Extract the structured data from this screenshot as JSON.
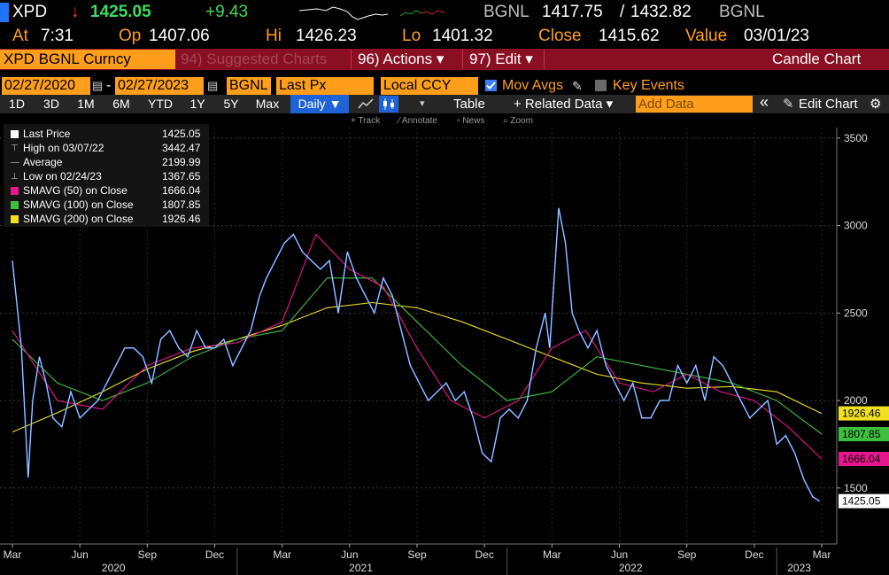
{
  "quote": {
    "ticker": "XPD",
    "arrow": "↓",
    "last": "1425.05",
    "change": "+9.43",
    "src1": "BGNL",
    "bid": "1417.75",
    "ask_sep": "/",
    "ask": "1432.82",
    "src2": "BGNL",
    "at_label": "At",
    "at_time": "7:31",
    "op_label": "Op",
    "op": "1407.06",
    "hi_label": "Hi",
    "hi": "1426.23",
    "lo_label": "Lo",
    "lo": "1401.32",
    "close_label": "Close",
    "close": "1415.62",
    "value_label": "Value",
    "value_date": "03/01/23"
  },
  "titlebar": {
    "security": "XPD BGNL Curncy",
    "menu1": "94) Suggested Charts",
    "menu2": "96) Actions ▾",
    "menu3": "97) Edit ▾",
    "chart_kind": "Candle Chart"
  },
  "controls": {
    "start_date": "02/27/2020",
    "dash": "-",
    "end_date": "02/27/2023",
    "source": "BGNL",
    "field": "Last Px",
    "currency": "Local CCY",
    "mov_avgs": "Mov Avgs",
    "key_events": "Key Events"
  },
  "tabs": [
    {
      "label": "1D",
      "selected": false
    },
    {
      "label": "3D",
      "selected": false
    },
    {
      "label": "1M",
      "selected": false
    },
    {
      "label": "6M",
      "selected": false
    },
    {
      "label": "YTD",
      "selected": false
    },
    {
      "label": "1Y",
      "selected": false
    },
    {
      "label": "5Y",
      "selected": false
    },
    {
      "label": "Max",
      "selected": false
    },
    {
      "label": "Daily ▼",
      "selected": true
    }
  ],
  "toolbar": {
    "table": "Table",
    "related": "+ Related Data ▾",
    "add_data_placeholder": "Add Data",
    "collapse": "«",
    "edit_chart": "Edit Chart",
    "gear": "⚙"
  },
  "subtools": {
    "track": "Track",
    "annotate": "Annotate",
    "news": "News",
    "zoom": "Zoom"
  },
  "legend": [
    {
      "label": "Last Price",
      "value": "1425.05",
      "color": "#ffffff",
      "kind": "box"
    },
    {
      "label": "High on 03/07/22",
      "value": "3442.47",
      "color": "#bdbdbd",
      "kind": "high"
    },
    {
      "label": "Average",
      "value": "2199.99",
      "color": "#bdbdbd",
      "kind": "avg"
    },
    {
      "label": "Low on 02/24/23",
      "value": "1367.65",
      "color": "#bdbdbd",
      "kind": "low"
    },
    {
      "label": "SMAVG (50)  on Close",
      "value": "1666.04",
      "color": "#e8168c",
      "kind": "box"
    },
    {
      "label": "SMAVG (100)  on Close",
      "value": "1807.85",
      "color": "#3fbf3f",
      "kind": "box"
    },
    {
      "label": "SMAVG (200)  on Close",
      "value": "1926.46",
      "color": "#f0e020",
      "kind": "box"
    }
  ],
  "chart_data": {
    "type": "line",
    "ylim": [
      1180,
      3560
    ],
    "y_ticks": [
      1500,
      2000,
      2500,
      3000,
      3500
    ],
    "x_ticks": [
      "Mar",
      "Jun",
      "Sep",
      "Dec",
      "Mar",
      "Jun",
      "Sep",
      "Dec",
      "Mar",
      "Jun",
      "Sep",
      "Dec",
      "Mar"
    ],
    "x_tick_months": [
      0,
      3,
      6,
      9,
      12,
      15,
      18,
      21,
      24,
      27,
      30,
      33,
      36
    ],
    "year_labels": [
      {
        "label": "2020",
        "month": 4.5
      },
      {
        "label": "2021",
        "month": 15.5
      },
      {
        "label": "2022",
        "month": 27.5
      },
      {
        "label": "2023",
        "month": 35.0
      }
    ],
    "year_dividers": [
      10,
      22,
      34
    ],
    "x_unit": "months since Mar 2020",
    "series": [
      {
        "name": "Last Price",
        "color": "#3f86ff",
        "x": [
          0,
          0.4,
          0.7,
          0.9,
          1.2,
          1.5,
          1.8,
          2.2,
          2.6,
          3,
          3.4,
          3.8,
          4.2,
          4.6,
          5,
          5.4,
          5.8,
          6.2,
          6.6,
          7,
          7.4,
          7.8,
          8.2,
          8.6,
          9,
          9.4,
          9.8,
          10.2,
          10.6,
          11,
          11.3,
          11.7,
          12.1,
          12.5,
          12.9,
          13.3,
          13.7,
          14.1,
          14.5,
          14.9,
          15.3,
          15.7,
          16.1,
          16.5,
          16.9,
          17.3,
          17.7,
          18.1,
          18.5,
          18.9,
          19.3,
          19.7,
          20.1,
          20.5,
          20.9,
          21.3,
          21.7,
          22.1,
          22.5,
          22.9,
          23.3,
          23.7,
          23.9,
          24.1,
          24.3,
          24.6,
          24.9,
          25.2,
          25.6,
          26,
          26.4,
          26.8,
          27.2,
          27.6,
          28,
          28.4,
          28.8,
          29.2,
          29.6,
          30,
          30.4,
          30.8,
          31.2,
          31.6,
          32,
          32.4,
          32.8,
          33.2,
          33.6,
          34,
          34.4,
          34.8,
          35.2,
          35.6,
          35.9
        ],
        "values": [
          2800,
          2300,
          1560,
          2000,
          2250,
          2100,
          1900,
          1850,
          2050,
          1900,
          1950,
          2000,
          2100,
          2200,
          2300,
          2300,
          2250,
          2100,
          2350,
          2400,
          2300,
          2250,
          2400,
          2300,
          2300,
          2350,
          2200,
          2300,
          2400,
          2600,
          2700,
          2800,
          2900,
          2950,
          2850,
          2800,
          2750,
          2800,
          2500,
          2850,
          2700,
          2600,
          2500,
          2700,
          2600,
          2400,
          2200,
          2100,
          2000,
          2050,
          2100,
          2000,
          2050,
          1900,
          1700,
          1650,
          1900,
          1950,
          1900,
          2000,
          2300,
          2500,
          2300,
          2700,
          3100,
          2900,
          2500,
          2400,
          2300,
          2400,
          2200,
          2100,
          2000,
          2100,
          1900,
          1900,
          2000,
          2000,
          2200,
          2100,
          2200,
          2000,
          2250,
          2200,
          2100,
          2000,
          1900,
          1950,
          2000,
          1750,
          1800,
          1700,
          1550,
          1450,
          1425
        ]
      },
      {
        "name": "SMAVG (50)  on Close",
        "color": "#e8168c",
        "x": [
          0,
          2,
          4,
          6,
          8,
          10,
          12,
          13.5,
          15,
          16.5,
          18,
          19.5,
          21,
          22.5,
          24,
          25.5,
          27,
          28.5,
          30,
          31.5,
          33,
          34.5,
          36
        ],
        "values": [
          2400,
          2000,
          1950,
          2200,
          2300,
          2330,
          2450,
          2950,
          2750,
          2650,
          2300,
          2000,
          1900,
          2000,
          2300,
          2400,
          2100,
          2050,
          2150,
          2050,
          2000,
          1850,
          1666
        ]
      },
      {
        "name": "SMAVG (100)  on Close",
        "color": "#3fbf3f",
        "x": [
          0,
          2,
          4,
          6,
          8,
          10,
          12,
          14,
          16,
          18,
          20,
          22,
          24,
          26,
          28,
          30,
          32,
          34,
          36
        ],
        "values": [
          2350,
          2100,
          2000,
          2100,
          2250,
          2350,
          2400,
          2700,
          2700,
          2450,
          2200,
          2000,
          2050,
          2250,
          2200,
          2150,
          2100,
          2000,
          1808
        ]
      },
      {
        "name": "SMAVG (200)  on Close",
        "color": "#f0e020",
        "x": [
          0,
          2,
          4,
          6,
          8,
          10,
          12,
          14,
          16,
          18,
          20,
          22,
          24,
          26,
          28,
          30,
          32,
          34,
          36
        ],
        "values": [
          1820,
          1930,
          2050,
          2180,
          2280,
          2350,
          2430,
          2530,
          2560,
          2530,
          2450,
          2350,
          2250,
          2150,
          2100,
          2070,
          2080,
          2050,
          1926
        ]
      }
    ],
    "last_labels": [
      {
        "value": "1926.46",
        "color": "#f0e020",
        "text_color": "#000000"
      },
      {
        "value": "1807.85",
        "color": "#3fbf3f",
        "text_color": "#000000"
      },
      {
        "value": "1666.04",
        "color": "#e8168c",
        "text_color": "#000000"
      },
      {
        "value": "1425.05",
        "color": "#ffffff",
        "text_color": "#000000"
      }
    ]
  }
}
